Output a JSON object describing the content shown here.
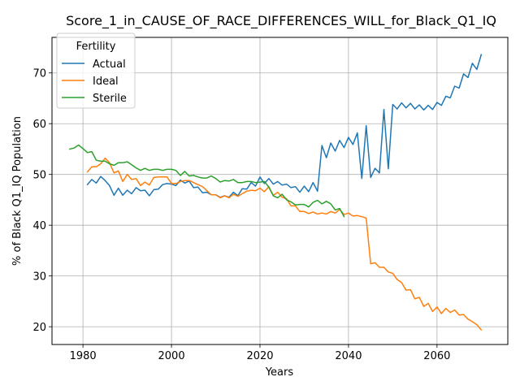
{
  "chart_data": {
    "type": "line",
    "title": "Score_1_in_CAUSE_OF_RACE_DIFFERENCES_WILL_for_Black_Q1_IQ",
    "xlabel": "Years",
    "ylabel": "% of Black Q1_IQ Population",
    "xlim": [
      1973,
      2076
    ],
    "ylim": [
      16.5,
      77
    ],
    "xticks": [
      1980,
      2000,
      2020,
      2040,
      2060
    ],
    "yticks": [
      20,
      30,
      40,
      50,
      60,
      70
    ],
    "grid": true,
    "legend": {
      "title": "Fertility",
      "position": "top-left"
    },
    "series": [
      {
        "name": "Actual",
        "color": "#1f77b4",
        "x": [
          1981,
          1982,
          1983,
          1984,
          1985,
          1986,
          1987,
          1988,
          1989,
          1990,
          1991,
          1992,
          1993,
          1994,
          1995,
          1996,
          1997,
          1998,
          1999,
          2000,
          2001,
          2002,
          2003,
          2004,
          2005,
          2006,
          2007,
          2008,
          2009,
          2010,
          2011,
          2012,
          2013,
          2014,
          2015,
          2016,
          2017,
          2018,
          2019,
          2020,
          2021,
          2022,
          2023,
          2024,
          2025,
          2026,
          2027,
          2028,
          2029,
          2030,
          2031,
          2032,
          2033,
          2034,
          2035,
          2036,
          2037,
          2038,
          2039,
          2040,
          2041,
          2042,
          2043,
          2044,
          2045,
          2046,
          2047,
          2048,
          2049,
          2050,
          2051,
          2052,
          2053,
          2054,
          2055,
          2056,
          2057,
          2058,
          2059,
          2060,
          2061,
          2062,
          2063,
          2064,
          2065,
          2066,
          2067,
          2068,
          2069,
          2070
        ],
        "y": [
          48.0,
          49.0,
          48.3,
          49.6,
          48.8,
          47.8,
          45.9,
          47.3,
          45.9,
          46.9,
          46.2,
          47.4,
          46.8,
          46.9,
          45.8,
          47.0,
          47.1,
          48.0,
          48.2,
          48.1,
          47.8,
          48.9,
          48.3,
          48.7,
          47.4,
          47.5,
          46.4,
          46.5,
          46.0,
          46.0,
          45.5,
          45.8,
          45.5,
          46.5,
          45.8,
          47.2,
          47.1,
          48.4,
          47.7,
          49.5,
          48.2,
          49.2,
          48.1,
          48.6,
          47.9,
          48.1,
          47.4,
          47.6,
          46.5,
          47.7,
          46.6,
          48.4,
          46.7,
          55.7,
          53.3,
          56.2,
          54.6,
          56.7,
          55.3,
          57.3,
          55.9,
          58.2,
          49.2,
          59.6,
          49.4,
          51.2,
          50.3,
          62.8,
          51.1,
          63.8,
          62.9,
          64.1,
          63.1,
          64.0,
          62.9,
          63.7,
          62.7,
          63.6,
          62.8,
          64.2,
          63.6,
          65.4,
          65.1,
          67.4,
          67.0,
          69.8,
          69.1,
          71.9,
          70.7,
          73.6
        ]
      },
      {
        "name": "Ideal",
        "color": "#ff7f0e",
        "x": [
          1981,
          1982,
          1983,
          1984,
          1985,
          1986,
          1987,
          1988,
          1989,
          1990,
          1991,
          1992,
          1993,
          1994,
          1995,
          1996,
          1997,
          1998,
          1999,
          2000,
          2001,
          2002,
          2003,
          2004,
          2005,
          2006,
          2007,
          2008,
          2009,
          2010,
          2011,
          2012,
          2013,
          2014,
          2015,
          2016,
          2017,
          2018,
          2019,
          2020,
          2021,
          2022,
          2023,
          2024,
          2025,
          2026,
          2027,
          2028,
          2029,
          2030,
          2031,
          2032,
          2033,
          2034,
          2035,
          2036,
          2037,
          2038,
          2039,
          2040,
          2041,
          2042,
          2043,
          2044,
          2045,
          2046,
          2047,
          2048,
          2049,
          2050,
          2051,
          2052,
          2053,
          2054,
          2055,
          2056,
          2057,
          2058,
          2059,
          2060,
          2061,
          2062,
          2063,
          2064,
          2065,
          2066,
          2067,
          2068,
          2069,
          2070
        ],
        "y": [
          50.5,
          51.5,
          51.5,
          52.1,
          53.2,
          52.3,
          50.3,
          50.7,
          48.6,
          50.0,
          49.0,
          49.2,
          47.8,
          48.5,
          47.9,
          49.4,
          49.5,
          49.5,
          49.5,
          48.2,
          48.2,
          48.6,
          48.8,
          48.8,
          48.4,
          48.0,
          47.6,
          46.8,
          46.0,
          46.0,
          45.4,
          45.8,
          45.4,
          46.1,
          45.7,
          46.2,
          46.7,
          46.9,
          46.8,
          47.3,
          46.6,
          47.6,
          45.9,
          46.5,
          45.5,
          45.2,
          43.8,
          43.8,
          42.7,
          42.7,
          42.3,
          42.6,
          42.2,
          42.4,
          42.2,
          42.7,
          42.4,
          43.1,
          42.1,
          42.4,
          41.8,
          41.9,
          41.7,
          41.4,
          32.4,
          32.6,
          31.7,
          31.7,
          30.8,
          30.5,
          29.3,
          28.7,
          27.2,
          27.3,
          25.5,
          25.8,
          24.0,
          24.6,
          23.0,
          23.9,
          22.6,
          23.6,
          22.8,
          23.3,
          22.3,
          22.4,
          21.5,
          21.0,
          20.4,
          19.4
        ]
      },
      {
        "name": "Sterile",
        "color": "#2ca02c",
        "x": [
          1977,
          1978,
          1979,
          1980,
          1981,
          1982,
          1983,
          1984,
          1985,
          1986,
          1987,
          1988,
          1989,
          1990,
          1991,
          1992,
          1993,
          1994,
          1995,
          1996,
          1997,
          1998,
          1999,
          2000,
          2001,
          2002,
          2003,
          2004,
          2005,
          2006,
          2007,
          2008,
          2009,
          2010,
          2011,
          2012,
          2013,
          2014,
          2015,
          2016,
          2017,
          2018,
          2019,
          2020,
          2021,
          2022,
          2023,
          2024,
          2025,
          2026,
          2027,
          2028,
          2029,
          2030,
          2031,
          2032,
          2033,
          2034,
          2035,
          2036,
          2037,
          2038,
          2039
        ],
        "y": [
          55.0,
          55.2,
          55.8,
          55.1,
          54.3,
          54.5,
          52.8,
          52.6,
          52.6,
          52.1,
          51.8,
          52.3,
          52.3,
          52.5,
          51.9,
          51.3,
          50.8,
          51.2,
          50.8,
          51.0,
          51.0,
          50.8,
          51.0,
          51.0,
          50.8,
          49.8,
          50.6,
          49.7,
          49.8,
          49.5,
          49.3,
          49.3,
          49.7,
          49.2,
          48.5,
          48.8,
          48.7,
          49.0,
          48.4,
          48.4,
          48.6,
          48.6,
          48.4,
          48.5,
          48.6,
          47.5,
          45.8,
          45.4,
          46.1,
          45.0,
          44.6,
          44.0,
          44.1,
          44.1,
          43.6,
          44.5,
          44.9,
          44.2,
          44.7,
          44.2,
          43.0,
          43.3,
          41.7
        ]
      }
    ]
  }
}
